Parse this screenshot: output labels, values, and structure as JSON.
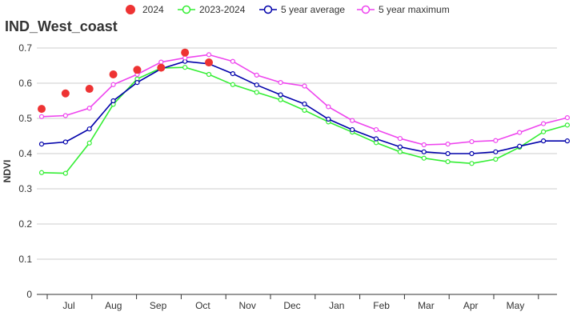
{
  "chart_data": {
    "type": "line",
    "title": "IND_West_coast",
    "ylabel": "NDVI",
    "xlabel": "",
    "ylim": [
      0,
      0.7
    ],
    "yticks": [
      "0",
      "0.1",
      "0.2",
      "0.3",
      "0.4",
      "0.5",
      "0.6",
      "0.7"
    ],
    "xticks": [
      "Jul",
      "Aug",
      "Sep",
      "Oct",
      "Nov",
      "Dec",
      "Jan",
      "Feb",
      "Mar",
      "Apr",
      "May"
    ],
    "grid": true,
    "legend_position": "top",
    "series": [
      {
        "name": "2024",
        "style": "dots",
        "color": "#ee3333",
        "values": [
          0.527,
          0.571,
          0.584,
          0.625,
          0.638,
          0.644,
          0.687,
          0.659
        ]
      },
      {
        "name": "2023-2024",
        "style": "line",
        "color": "#33ee33",
        "values": [
          0.346,
          0.344,
          0.43,
          0.54,
          0.612,
          0.643,
          0.645,
          0.625,
          0.596,
          0.574,
          0.553,
          0.523,
          0.49,
          0.461,
          0.431,
          0.405,
          0.387,
          0.377,
          0.372,
          0.384,
          0.418,
          0.462,
          0.481
        ]
      },
      {
        "name": "5 year average",
        "style": "line",
        "color": "#0000aa",
        "values": [
          0.427,
          0.433,
          0.47,
          0.55,
          0.602,
          0.641,
          0.662,
          0.655,
          0.627,
          0.595,
          0.567,
          0.541,
          0.498,
          0.468,
          0.442,
          0.419,
          0.405,
          0.4,
          0.4,
          0.405,
          0.421,
          0.436,
          0.436
        ]
      },
      {
        "name": "5 year maximum",
        "style": "line",
        "color": "#ee44ee",
        "values": [
          0.505,
          0.508,
          0.529,
          0.596,
          0.625,
          0.66,
          0.672,
          0.681,
          0.662,
          0.623,
          0.602,
          0.592,
          0.533,
          0.494,
          0.468,
          0.443,
          0.425,
          0.427,
          0.434,
          0.437,
          0.46,
          0.485,
          0.502
        ]
      }
    ]
  }
}
